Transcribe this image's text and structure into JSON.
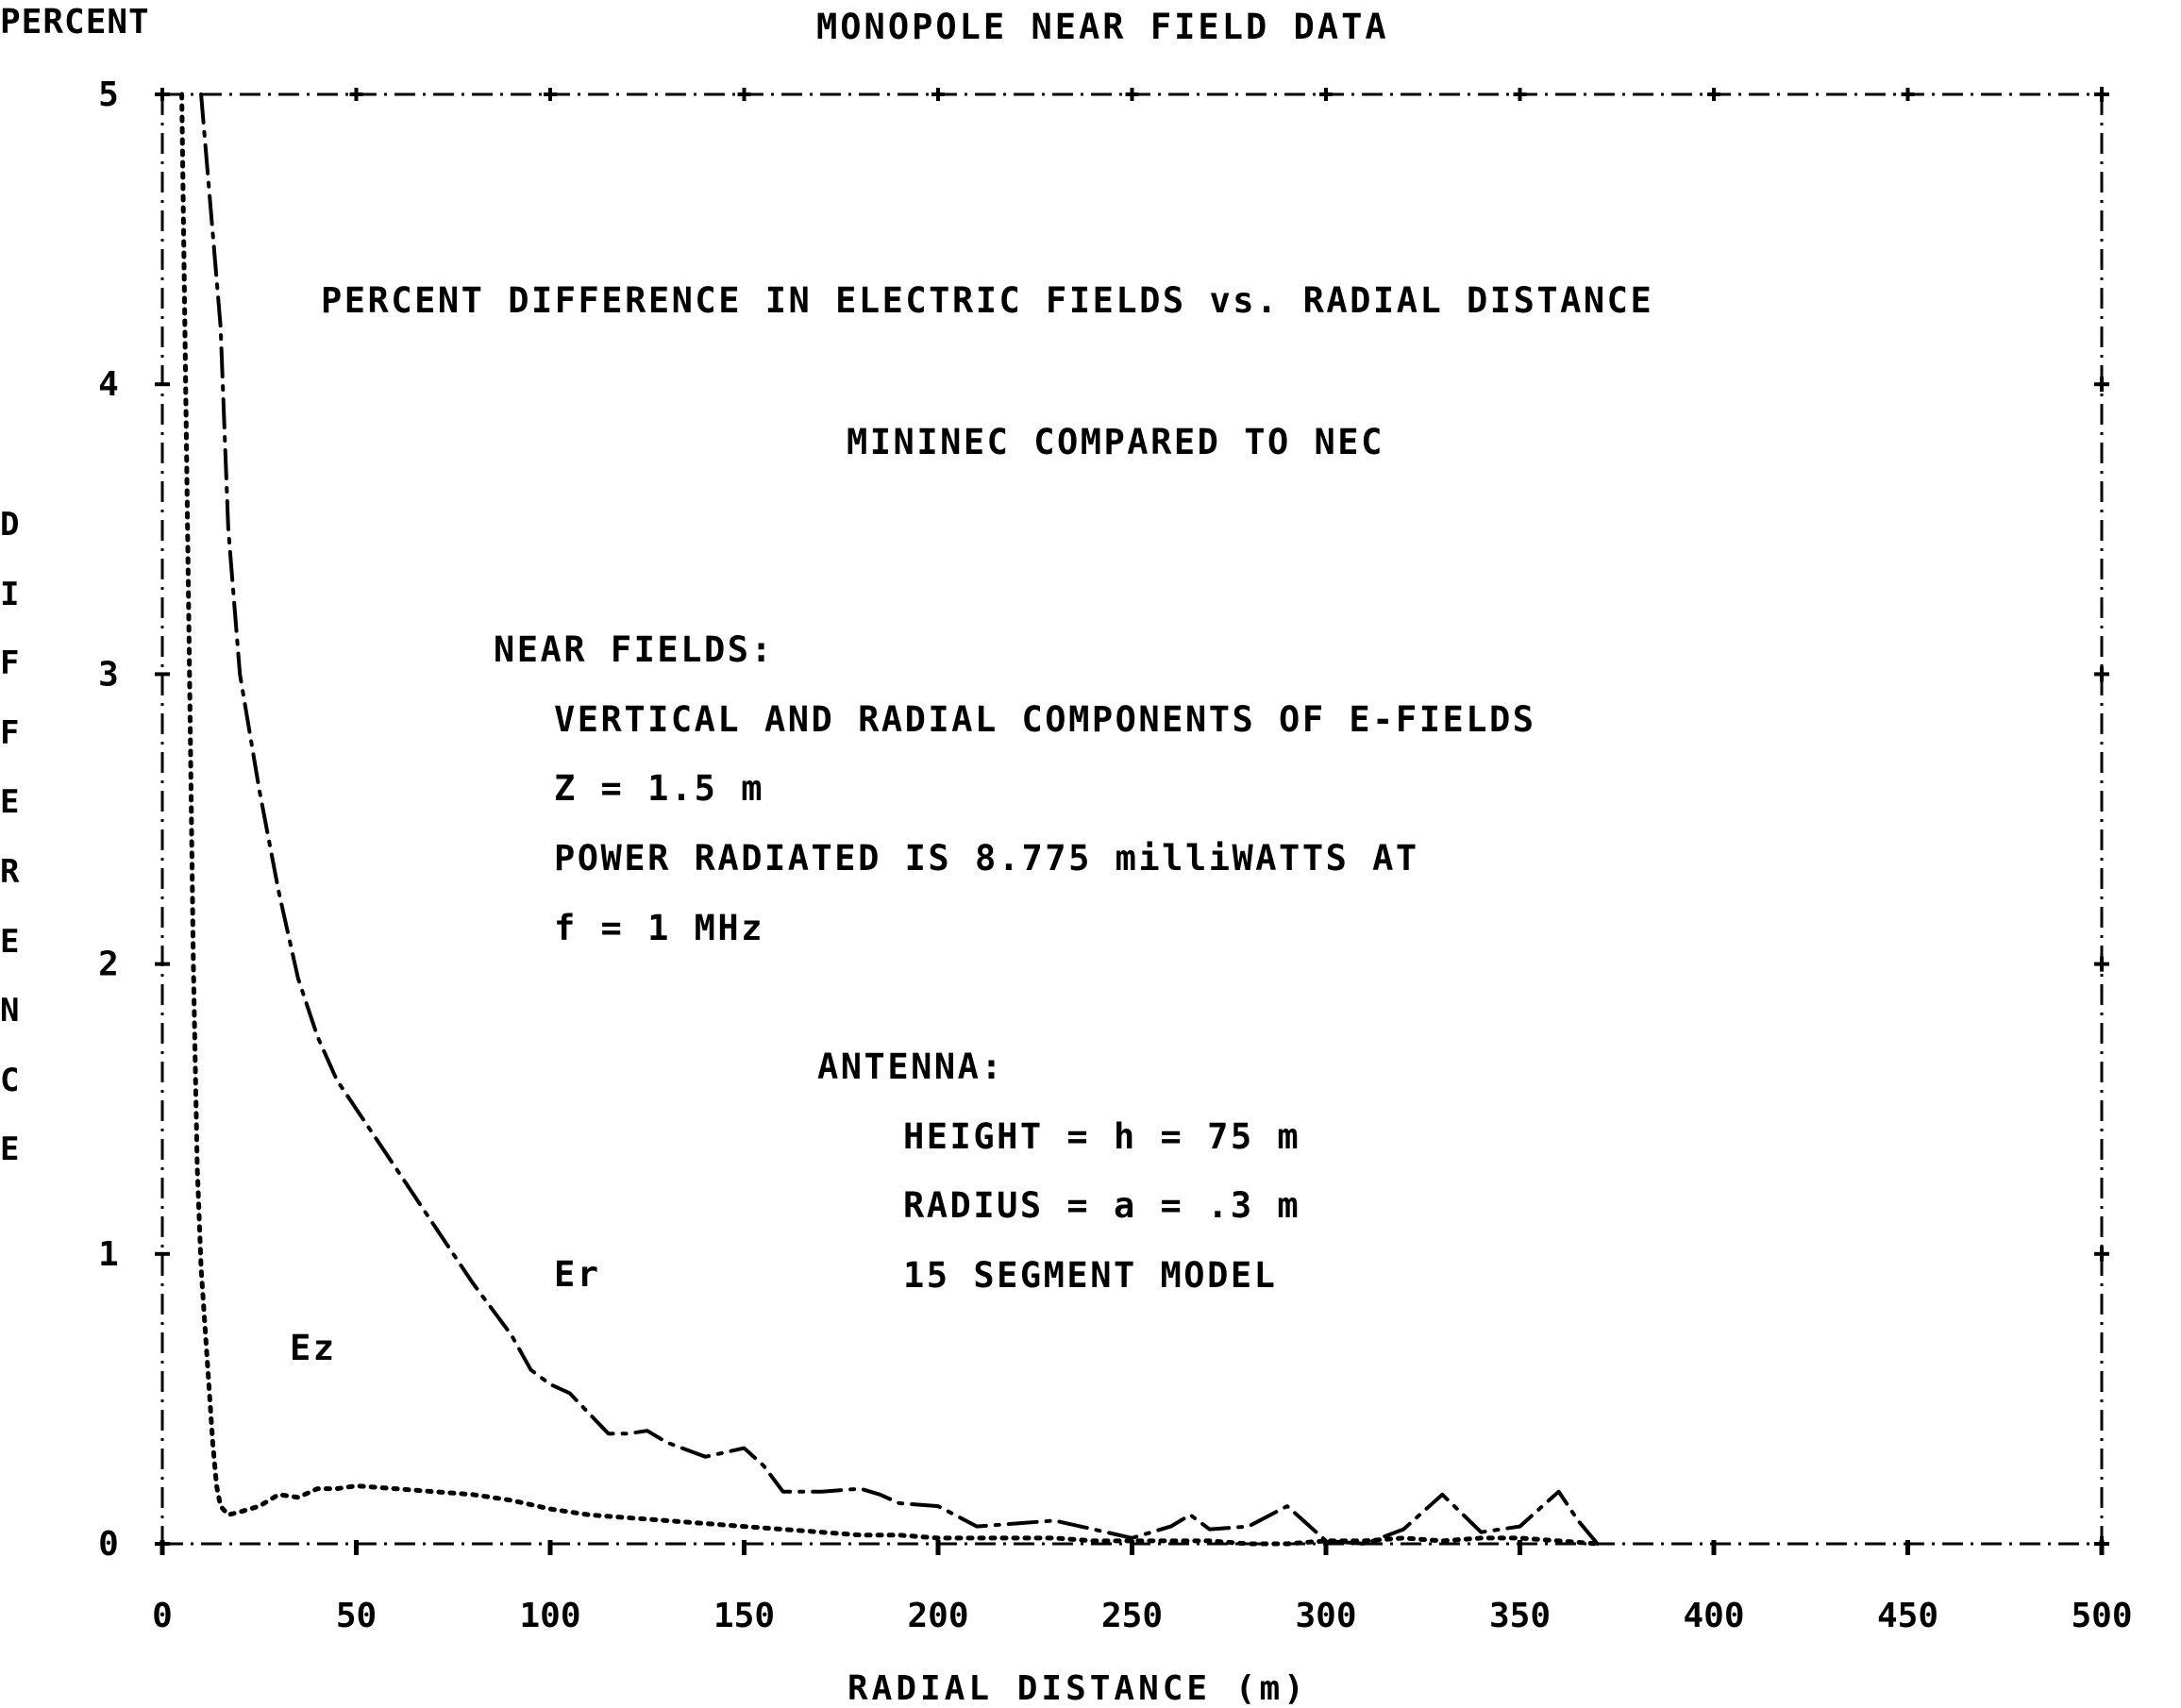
{
  "chart_data": {
    "type": "line",
    "title": "MONOPOLE NEAR FIELD DATA",
    "ylabel_unit": "PERCENT",
    "ylabel": "DIFFERENCE",
    "xlabel": "RADIAL DISTANCE (m)",
    "xlim": [
      0,
      500
    ],
    "ylim": [
      0,
      5
    ],
    "xticks": [
      "0",
      "50",
      "100",
      "150",
      "200",
      "250",
      "300",
      "350",
      "400",
      "450",
      "500"
    ],
    "yticks": [
      "0",
      "1",
      "2",
      "3",
      "4",
      "5"
    ],
    "grid": false,
    "series": [
      {
        "name": "Er",
        "x": [
          10,
          15,
          17,
          20,
          25,
          30,
          35,
          40,
          45,
          50,
          60,
          70,
          80,
          90,
          95,
          100,
          105,
          110,
          115,
          120,
          125,
          130,
          140,
          150,
          155,
          160,
          170,
          180,
          185,
          190,
          200,
          210,
          220,
          230,
          240,
          250,
          260,
          265,
          270,
          280,
          290,
          295,
          300,
          310,
          320,
          330,
          340,
          350,
          355,
          360,
          365,
          370
        ],
        "values": [
          5.0,
          4.2,
          3.5,
          3.0,
          2.6,
          2.25,
          1.95,
          1.75,
          1.6,
          1.5,
          1.3,
          1.1,
          0.9,
          0.72,
          0.6,
          0.55,
          0.52,
          0.45,
          0.38,
          0.38,
          0.39,
          0.35,
          0.3,
          0.33,
          0.27,
          0.18,
          0.18,
          0.19,
          0.17,
          0.14,
          0.13,
          0.06,
          0.07,
          0.08,
          0.05,
          0.02,
          0.06,
          0.1,
          0.05,
          0.06,
          0.13,
          0.07,
          0.01,
          0.0,
          0.05,
          0.17,
          0.04,
          0.06,
          0.12,
          0.18,
          0.08,
          0.0
        ]
      },
      {
        "name": "Ez",
        "x": [
          5,
          7,
          8,
          9,
          10,
          11,
          12,
          13,
          14,
          15,
          17,
          20,
          25,
          30,
          35,
          40,
          45,
          50,
          60,
          70,
          80,
          90,
          100,
          110,
          120,
          130,
          140,
          150,
          160,
          170,
          180,
          190,
          200,
          210,
          220,
          230,
          240,
          250,
          260,
          270,
          280,
          290,
          300,
          310,
          320,
          330,
          340,
          350,
          360,
          370
        ],
        "values": [
          5.0,
          3.0,
          2.0,
          1.3,
          0.95,
          0.75,
          0.55,
          0.35,
          0.2,
          0.13,
          0.1,
          0.11,
          0.13,
          0.17,
          0.16,
          0.19,
          0.19,
          0.2,
          0.19,
          0.18,
          0.17,
          0.15,
          0.12,
          0.1,
          0.09,
          0.08,
          0.07,
          0.06,
          0.05,
          0.04,
          0.03,
          0.03,
          0.02,
          0.02,
          0.02,
          0.02,
          0.01,
          0.01,
          0.01,
          0.01,
          0.0,
          0.0,
          0.01,
          0.01,
          0.02,
          0.01,
          0.02,
          0.02,
          0.01,
          0.0
        ]
      }
    ],
    "annotations": [
      {
        "text": "Er",
        "x": 83,
        "y": 0.9
      },
      {
        "text": "Ez",
        "x": 13,
        "y": 0.65
      },
      {
        "text": "PERCENT DIFFERENCE IN ELECTRIC FIELDS vs. RADIAL DISTANCE"
      },
      {
        "text": "MININEC COMPARED TO NEC"
      },
      {
        "text": "NEAR FIELDS:"
      },
      {
        "text": "VERTICAL AND RADIAL COMPONENTS OF E-FIELDS"
      },
      {
        "text": "Z = 1.5 m"
      },
      {
        "text": "POWER RADIATED IS 8.775 milliWATTS AT"
      },
      {
        "text": "f = 1 MHz"
      },
      {
        "text": "ANTENNA:"
      },
      {
        "text": "HEIGHT = h = 75 m"
      },
      {
        "text": "RADIUS = a = .3 m"
      },
      {
        "text": "15 SEGMENT MODEL"
      }
    ]
  },
  "text": {
    "title": "MONOPOLE NEAR FIELD DATA",
    "y_unit": "PERCENT",
    "y_letters": [
      "D",
      "I",
      "F",
      "F",
      "E",
      "R",
      "E",
      "N",
      "C",
      "E"
    ],
    "x_label": "RADIAL DISTANCE (m)",
    "subtitle": "PERCENT DIFFERENCE IN ELECTRIC FIELDS vs. RADIAL DISTANCE",
    "comparison": "MININEC COMPARED TO NEC",
    "near_fields_heading": "NEAR FIELDS:",
    "near_line1": "VERTICAL AND RADIAL COMPONENTS OF E-FIELDS",
    "near_line2": "Z = 1.5 m",
    "near_line3": "POWER RADIATED IS 8.775 milliWATTS AT",
    "near_line4": "f = 1 MHz",
    "antenna_heading": "ANTENNA:",
    "antenna_line1": "HEIGHT = h = 75 m",
    "antenna_line2": "RADIUS = a = .3 m",
    "antenna_line3": "15 SEGMENT MODEL",
    "er_label": "Er",
    "ez_label": "Ez"
  }
}
